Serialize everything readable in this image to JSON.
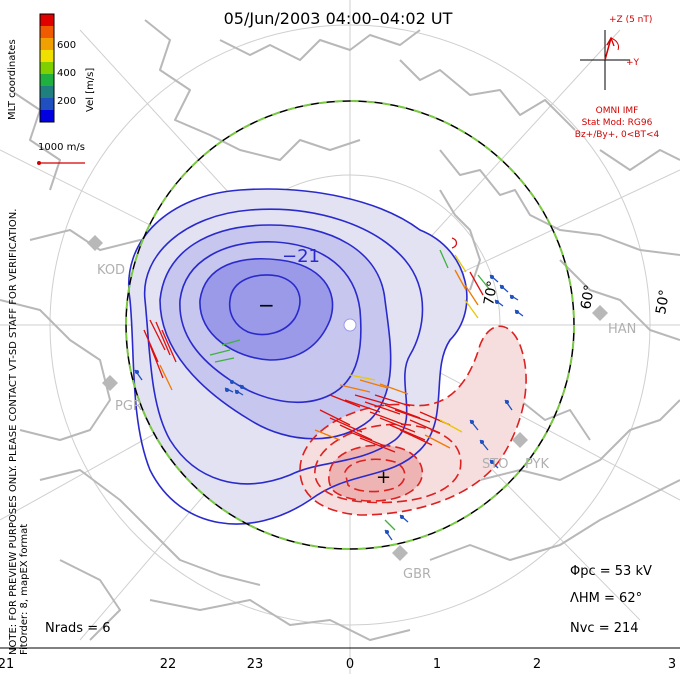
{
  "title": "05/Jun/2003 04:00–04:02 UT",
  "coords_label": "MLT coordinates",
  "note_line1": "NOTE: FOR PREVIEW PURPOSES ONLY. PLEASE CONTACT VT-SD STAFF FOR VERIFICATION.",
  "note_line2": "FitOrder: 8, mapEX format",
  "colorbar": {
    "label": "Vel [m/s]",
    "ticks": [
      "600",
      "400",
      "200"
    ],
    "colors": [
      "#e00000",
      "#f05a00",
      "#f0a000",
      "#f0e000",
      "#80d000",
      "#20b040",
      "#208080",
      "#2050c0",
      "#0000e0"
    ]
  },
  "scale_vector_label": "1000 m/s",
  "imf": {
    "z_label": "+Z (5 nT)",
    "y_label": "+Y",
    "source": "OMNI IMF",
    "stat_mod": "Stat Mod: RG96",
    "condition": "Bz+/By+, 0<BT<4"
  },
  "stats": {
    "phi_pc": "Φpc = 53 kV",
    "lambda_hm": "ΛHM = 62°",
    "n_vc": "Nvc = 214",
    "n_rads": "Nrads = 6"
  },
  "contour_labels": {
    "min_value": "−21",
    "min_marker": "−",
    "max_marker": "+"
  },
  "latitude_labels": [
    "70°",
    "60°",
    "50°"
  ],
  "stations": [
    "KOD",
    "PGR",
    "HAN",
    "STO",
    "PYK",
    "GBR"
  ],
  "mlt_axis": [
    "21",
    "22",
    "23",
    "0",
    "1",
    "2",
    "3"
  ],
  "colors": {
    "negative_cell": "#2a2acc",
    "positive_cell": "#dd2020",
    "hmb_green": "#7ac943",
    "map_grey": "#b8b8b8"
  }
}
